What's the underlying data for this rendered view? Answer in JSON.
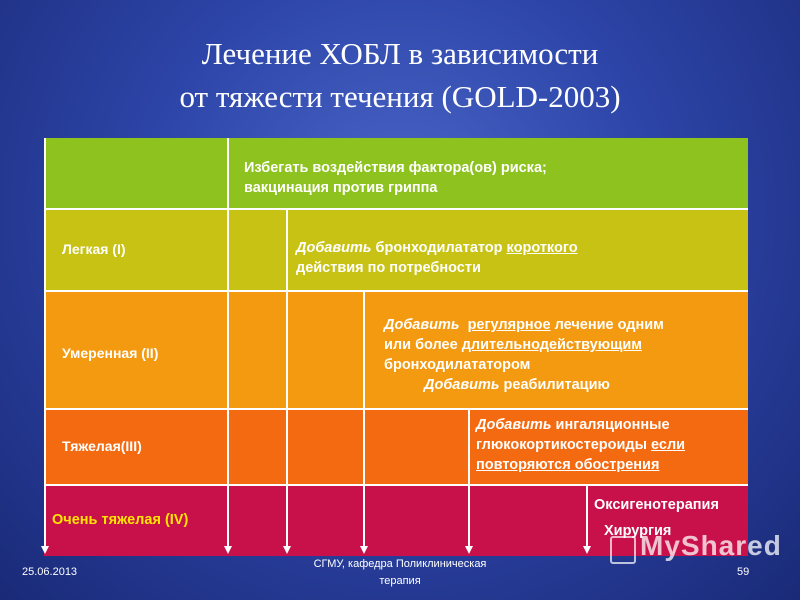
{
  "title": {
    "line1": "Лечение ХОБЛ в зависимости",
    "line2": "от тяжести течения (GOLD-2003)"
  },
  "rows": {
    "all": {
      "label": "",
      "line1": "Избегать воздействия фактора(ов) риска;",
      "line2": "вакцинация против гриппа"
    },
    "mild": {
      "label": "Легкая (I)",
      "add": "Добавить",
      "t1": " бронходилататор ",
      "t1u": "короткого",
      "line2": "действия по потребности"
    },
    "moderate": {
      "label": "Умеренная (II)",
      "add": "Добавить",
      "t1u": "регулярное",
      "t1": " лечение одним",
      "line2a": "или более ",
      "line2u": "длительнодействующим",
      "line3": "бронходилататором",
      "add2": "Добавить",
      "line4": " реабилитацию"
    },
    "severe": {
      "label": "Тяжелая(III)",
      "add": "Добавить",
      "t1": " ингаляционные",
      "line2a": "глюкокортикостероиды ",
      "line2u": "если",
      "line3u": "повторяются обострения"
    },
    "very_severe": {
      "label": "Очень тяжелая (IV)",
      "line1": "Оксигенотерапия",
      "line2": "Хирургия"
    }
  },
  "footer": {
    "date": "25.06.2013",
    "center_line1": "СГМУ, кафедра Поликлиническая",
    "center_line2": "терапия",
    "page": "59"
  },
  "colors": {
    "row_all": "#8dc21f",
    "row_mild": "#c8c214",
    "row_moderate": "#f49a10",
    "row_severe": "#f36a10",
    "row_very_severe": "#c8104a",
    "very_severe_label": "#ffe600"
  },
  "watermark": "MyShared"
}
